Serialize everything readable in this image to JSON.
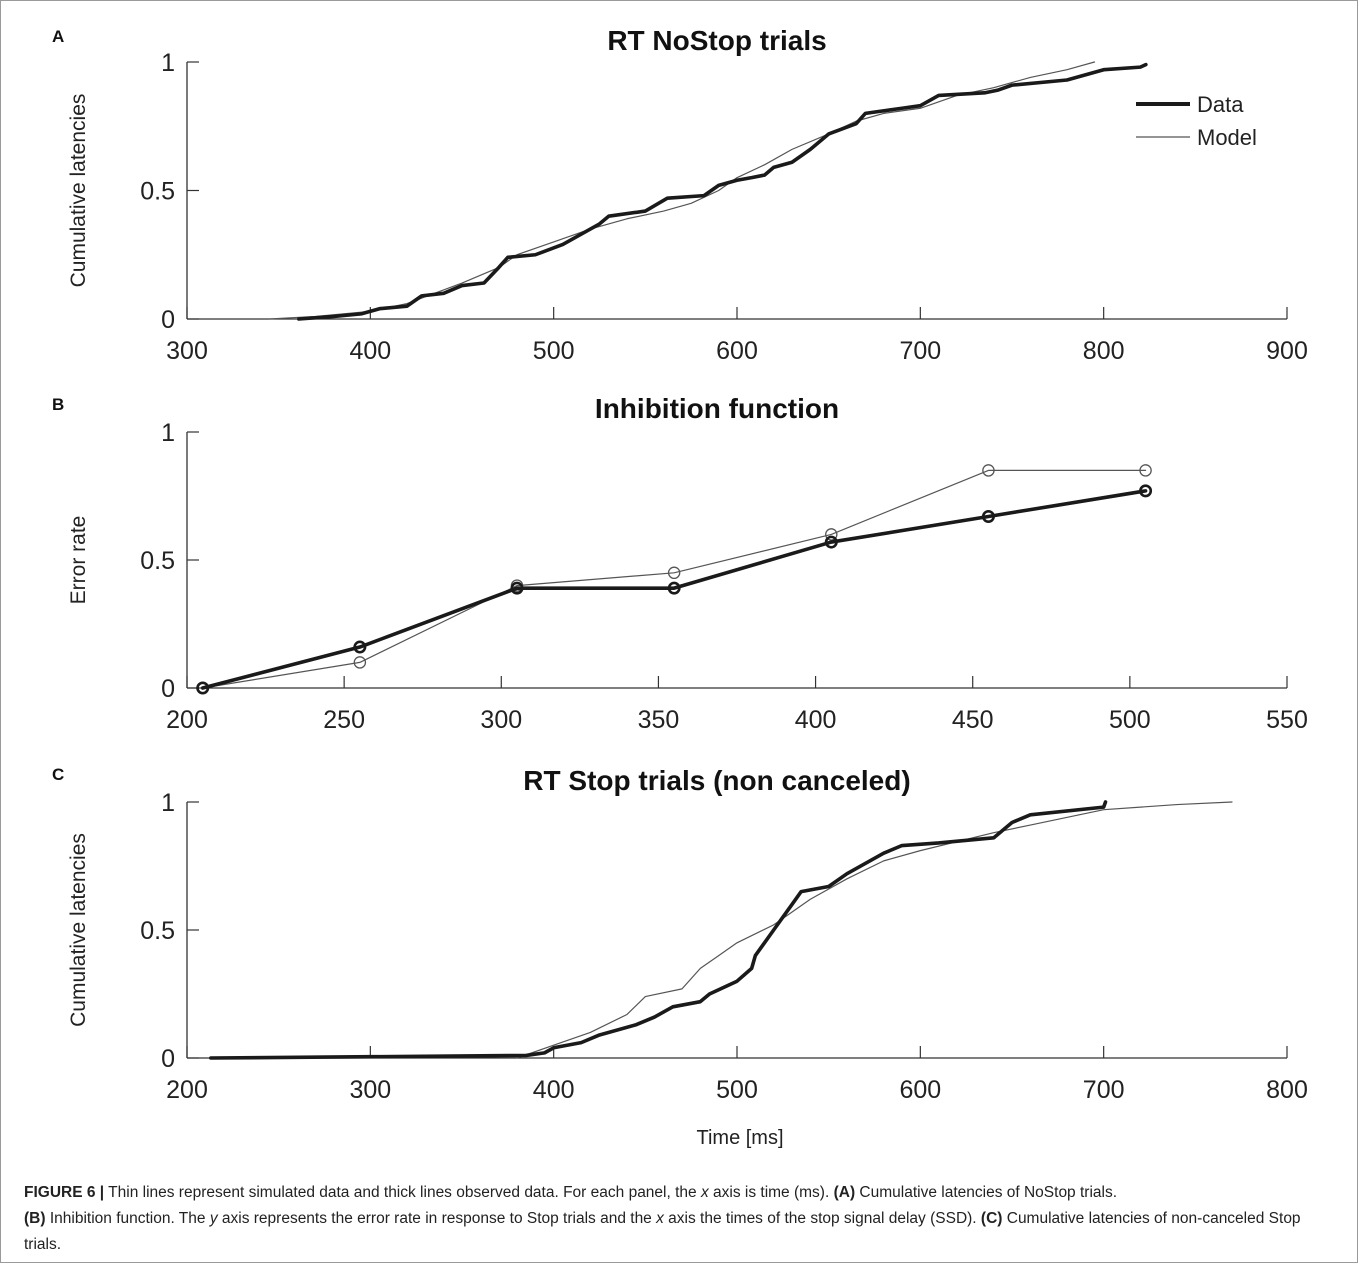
{
  "caption": {
    "figure_label": "FIGURE 6 |",
    "text_1": " Thin lines represent simulated data and thick lines observed data. For each panel, the ",
    "x_italic": "x",
    "text_2": " axis is time (ms). ",
    "a_label": "(A)",
    "text_3": " Cumulative latencies of NoStop trials.",
    "b_label": "(B)",
    "text_4": " Inhibition function. The ",
    "y_italic": "y",
    "text_5": " axis represents the error rate in response to Stop trials and the ",
    "x_italic_2": "x",
    "text_6": " axis the times of the stop signal delay (SSD). ",
    "c_label": "(C)",
    "text_7": " Cumulative latencies of non-canceled Stop trials."
  },
  "colors": {
    "data_line": "#1a1a1a",
    "model_line": "#555555",
    "axis": "#333333",
    "text": "#222222"
  },
  "chart_data": [
    {
      "panel_letter": "A",
      "type": "line",
      "title": "RT NoStop trials",
      "xlabel": "",
      "ylabel": "Cumulative latencies",
      "xlim": [
        300,
        900
      ],
      "ylim": [
        0,
        1
      ],
      "xticks": [
        300,
        400,
        500,
        600,
        700,
        800,
        900
      ],
      "yticks": [
        0,
        0.5,
        1
      ],
      "ytick_labels": [
        "0",
        "0.5",
        "1"
      ],
      "grid": false,
      "legend": {
        "placement": "top-right",
        "entries": [
          "Data",
          "Model"
        ]
      },
      "series": [
        {
          "name": "Data",
          "style": "thick",
          "x": [
            361,
            380,
            395,
            405,
            420,
            428,
            440,
            450,
            462,
            470,
            475,
            490,
            505,
            515,
            525,
            530,
            550,
            562,
            582,
            590,
            600,
            608,
            615,
            620,
            630,
            640,
            650,
            665,
            670,
            690,
            700,
            710,
            735,
            742,
            750,
            780,
            800,
            820,
            823
          ],
          "y": [
            0,
            0.01,
            0.02,
            0.04,
            0.05,
            0.09,
            0.1,
            0.13,
            0.14,
            0.2,
            0.24,
            0.25,
            0.29,
            0.33,
            0.37,
            0.4,
            0.42,
            0.47,
            0.48,
            0.52,
            0.54,
            0.55,
            0.56,
            0.59,
            0.61,
            0.66,
            0.72,
            0.76,
            0.8,
            0.82,
            0.83,
            0.87,
            0.88,
            0.89,
            0.91,
            0.93,
            0.97,
            0.98,
            0.99
          ]
        },
        {
          "name": "Model",
          "style": "thin",
          "x": [
            345,
            370,
            400,
            420,
            435,
            450,
            470,
            480,
            500,
            520,
            540,
            560,
            575,
            590,
            600,
            615,
            630,
            650,
            665,
            680,
            700,
            720,
            740,
            760,
            780,
            795
          ],
          "y": [
            0,
            0.01,
            0.03,
            0.06,
            0.1,
            0.14,
            0.2,
            0.25,
            0.3,
            0.35,
            0.39,
            0.42,
            0.45,
            0.5,
            0.55,
            0.6,
            0.66,
            0.72,
            0.77,
            0.8,
            0.82,
            0.87,
            0.9,
            0.94,
            0.97,
            1.0
          ]
        }
      ]
    },
    {
      "panel_letter": "B",
      "type": "line",
      "title": "Inhibition function",
      "xlabel": "",
      "ylabel": "Error rate",
      "xlim": [
        200,
        550
      ],
      "ylim": [
        0,
        1
      ],
      "xticks": [
        200,
        250,
        300,
        350,
        400,
        450,
        500,
        550
      ],
      "yticks": [
        0,
        0.5,
        1
      ],
      "ytick_labels": [
        "0",
        "0.5",
        "1"
      ],
      "grid": false,
      "markers": "circle",
      "series": [
        {
          "name": "Data",
          "style": "thick",
          "x": [
            205,
            255,
            305,
            355,
            405,
            455,
            505
          ],
          "y": [
            0.0,
            0.16,
            0.39,
            0.39,
            0.57,
            0.67,
            0.77
          ]
        },
        {
          "name": "Model",
          "style": "thin",
          "x": [
            205,
            255,
            305,
            355,
            405,
            455,
            505
          ],
          "y": [
            0.0,
            0.1,
            0.4,
            0.45,
            0.6,
            0.85,
            0.85
          ]
        }
      ]
    },
    {
      "panel_letter": "C",
      "type": "line",
      "title": "RT Stop trials (non canceled)",
      "xlabel": "Time [ms]",
      "ylabel": "Cumulative latencies",
      "xlim": [
        200,
        800
      ],
      "ylim": [
        0,
        1
      ],
      "xticks": [
        200,
        300,
        400,
        500,
        600,
        700,
        800
      ],
      "yticks": [
        0,
        0.5,
        1
      ],
      "ytick_labels": [
        "0",
        "0.5",
        "1"
      ],
      "grid": false,
      "series": [
        {
          "name": "Data",
          "style": "thick",
          "x": [
            213,
            300,
            385,
            395,
            400,
            415,
            425,
            445,
            455,
            465,
            480,
            485,
            500,
            508,
            510,
            515,
            520,
            525,
            530,
            535,
            550,
            560,
            570,
            580,
            590,
            610,
            640,
            650,
            660,
            700,
            701
          ],
          "y": [
            0,
            0.005,
            0.01,
            0.02,
            0.04,
            0.06,
            0.09,
            0.13,
            0.16,
            0.2,
            0.22,
            0.25,
            0.3,
            0.35,
            0.4,
            0.45,
            0.5,
            0.55,
            0.6,
            0.65,
            0.67,
            0.72,
            0.76,
            0.8,
            0.83,
            0.84,
            0.86,
            0.92,
            0.95,
            0.98,
            1.0
          ]
        },
        {
          "name": "Model",
          "style": "thin",
          "x": [
            380,
            400,
            420,
            440,
            450,
            470,
            480,
            490,
            500,
            520,
            540,
            560,
            580,
            600,
            640,
            660,
            700,
            740,
            770
          ],
          "y": [
            0,
            0.05,
            0.1,
            0.17,
            0.24,
            0.27,
            0.35,
            0.4,
            0.45,
            0.52,
            0.62,
            0.7,
            0.77,
            0.81,
            0.88,
            0.91,
            0.97,
            0.99,
            1.0
          ]
        }
      ]
    }
  ]
}
